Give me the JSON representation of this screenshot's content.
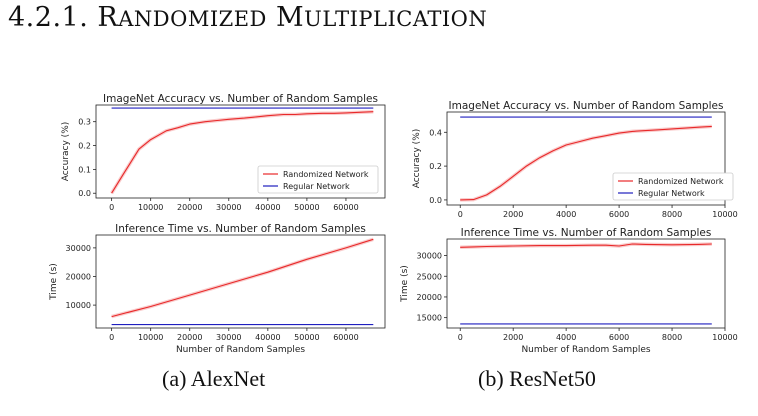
{
  "heading": {
    "number": "4.2.1.",
    "title_first_letter_1": "R",
    "title_rest_1": "ANDOMIZED",
    "title_first_letter_2": "M",
    "title_rest_2": "ULTIPLICATION"
  },
  "captions": [
    "(a) AlexNet",
    "(b) ResNet50"
  ],
  "chart_data": [
    {
      "id": "alex-acc",
      "type": "line",
      "title": "ImageNet  Accuracy vs.  Number of Random Samples",
      "xlabel": "",
      "ylabel": "Accuracy (%)",
      "xlim": [
        -4000,
        70000
      ],
      "ylim": [
        -0.02,
        0.37
      ],
      "xticks": [
        0,
        10000,
        20000,
        30000,
        40000,
        50000,
        60000
      ],
      "yticks": [
        0.0,
        0.1,
        0.2,
        0.3
      ],
      "legend": "lower-right",
      "series": [
        {
          "name": "Randomized Network",
          "color": "#e8292a",
          "x": [
            0,
            3000,
            7000,
            10000,
            14000,
            17000,
            20000,
            24000,
            27000,
            30000,
            34000,
            37000,
            40000,
            44000,
            47000,
            50000,
            54000,
            57000,
            60000,
            64000,
            67000
          ],
          "y": [
            0.0,
            0.08,
            0.185,
            0.225,
            0.262,
            0.275,
            0.29,
            0.3,
            0.305,
            0.31,
            0.315,
            0.32,
            0.325,
            0.33,
            0.33,
            0.333,
            0.335,
            0.335,
            0.337,
            0.34,
            0.342
          ]
        },
        {
          "name": "Regular Network",
          "color": "#1f1fbf",
          "x": [
            0,
            67000
          ],
          "y": [
            0.357,
            0.357
          ]
        }
      ]
    },
    {
      "id": "alex-time",
      "type": "line",
      "title": "Inference Time vs.  Number of Random Samples",
      "xlabel": "Number of Random Samples",
      "ylabel": "Time (s)",
      "xlim": [
        -4000,
        70000
      ],
      "ylim": [
        2000,
        34500
      ],
      "xticks": [
        0,
        10000,
        20000,
        30000,
        40000,
        50000,
        60000
      ],
      "yticks": [
        10000,
        20000,
        30000
      ],
      "series": [
        {
          "name": "",
          "color": "#e8292a",
          "x": [
            0,
            10000,
            20000,
            30000,
            40000,
            50000,
            60000,
            67000
          ],
          "y": [
            6000,
            9500,
            13500,
            17500,
            21500,
            26000,
            30000,
            33000
          ]
        },
        {
          "name": "",
          "color": "#1f1fbf",
          "x": [
            0,
            67000
          ],
          "y": [
            3200,
            3200
          ]
        }
      ]
    },
    {
      "id": "res-acc",
      "type": "line",
      "title": "ImageNet Accuracy vs.  Number of Random Samples",
      "xlabel": "",
      "ylabel": "Accuracy (%)",
      "xlim": [
        -500,
        10000
      ],
      "ylim": [
        -0.03,
        0.52
      ],
      "xticks": [
        0,
        2000,
        4000,
        6000,
        8000,
        10000
      ],
      "yticks": [
        0.0,
        0.2,
        0.4
      ],
      "legend": "lower-right",
      "series": [
        {
          "name": "Randomized Network",
          "color": "#e8292a",
          "x": [
            0,
            500,
            1000,
            1500,
            2000,
            2500,
            3000,
            3500,
            4000,
            4500,
            5000,
            5500,
            6000,
            6500,
            7000,
            7500,
            8000,
            8500,
            9000,
            9500
          ],
          "y": [
            0.0,
            0.002,
            0.03,
            0.08,
            0.14,
            0.2,
            0.25,
            0.29,
            0.325,
            0.345,
            0.365,
            0.38,
            0.395,
            0.405,
            0.41,
            0.415,
            0.42,
            0.425,
            0.43,
            0.435
          ]
        },
        {
          "name": "Regular Network",
          "color": "#1f1fbf",
          "x": [
            0,
            9500
          ],
          "y": [
            0.49,
            0.49
          ]
        }
      ]
    },
    {
      "id": "res-time",
      "type": "line",
      "title": "Inference Time vs. Number of Random Samples",
      "xlabel": "Number of Random Samples",
      "ylabel": "Time (s)",
      "xlim": [
        -500,
        10000
      ],
      "ylim": [
        12500,
        34000
      ],
      "xticks": [
        0,
        2000,
        4000,
        6000,
        8000,
        10000
      ],
      "yticks": [
        15000,
        20000,
        25000,
        30000
      ],
      "series": [
        {
          "name": "",
          "color": "#e8292a",
          "x": [
            0,
            500,
            1000,
            2000,
            3000,
            4000,
            5000,
            5500,
            6000,
            6500,
            7000,
            8000,
            9000,
            9500
          ],
          "y": [
            32000,
            32100,
            32200,
            32300,
            32400,
            32400,
            32500,
            32500,
            32300,
            32800,
            32700,
            32600,
            32700,
            32800
          ]
        },
        {
          "name": "",
          "color": "#1f1fbf",
          "x": [
            0,
            9500
          ],
          "y": [
            13500,
            13500
          ]
        }
      ]
    }
  ]
}
